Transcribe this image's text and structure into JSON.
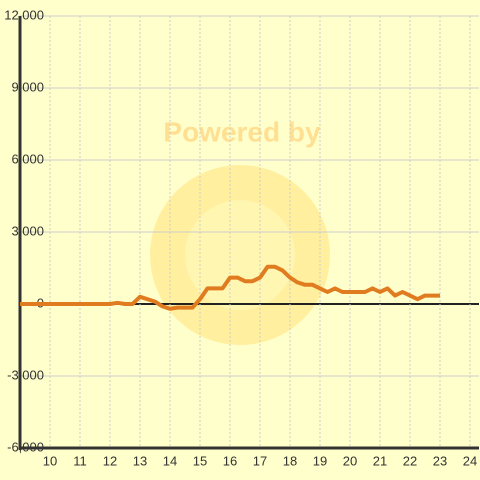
{
  "chart_data": {
    "type": "line",
    "watermark": "Powered by",
    "x": [
      9,
      9.25,
      9.5,
      9.75,
      10,
      10.25,
      10.5,
      10.75,
      11,
      11.25,
      11.5,
      11.75,
      12,
      12.25,
      12.5,
      12.75,
      13,
      13.25,
      13.5,
      13.75,
      14,
      14.25,
      14.5,
      14.75,
      15,
      15.25,
      15.5,
      15.75,
      16,
      16.25,
      16.5,
      16.75,
      17,
      17.25,
      17.5,
      17.75,
      18,
      18.25,
      18.5,
      18.75,
      19,
      19.25,
      19.5,
      19.75,
      20,
      20.25,
      20.5,
      20.75,
      21,
      21.25,
      21.5,
      21.75,
      22,
      22.25,
      22.5,
      22.75,
      23
    ],
    "series": [
      {
        "color": "#e07b20",
        "values": [
          0,
          0,
          0,
          0,
          0,
          0,
          0,
          0,
          0,
          0,
          0,
          0,
          0,
          50,
          0,
          0,
          300,
          200,
          100,
          -100,
          -200,
          -150,
          -150,
          -150,
          200,
          650,
          650,
          650,
          1100,
          1100,
          950,
          950,
          1100,
          1550,
          1550,
          1400,
          1100,
          900,
          800,
          800,
          650,
          500,
          650,
          500,
          500,
          500,
          500,
          650,
          500,
          650,
          350,
          500,
          350,
          200,
          350,
          350,
          350
        ]
      }
    ],
    "xlim": [
      9,
      24.3
    ],
    "xticks": [
      10,
      11,
      12,
      13,
      14,
      15,
      16,
      17,
      18,
      19,
      20,
      21,
      22,
      23,
      24
    ],
    "ylim": [
      -6000,
      12000
    ],
    "yticks": [
      {
        "value": -6000,
        "label": "-6,000"
      },
      {
        "value": -3000,
        "label": "-3,000"
      },
      0,
      {
        "value": 3000,
        "label": "3,000"
      },
      {
        "value": 6000,
        "label": "6,000"
      },
      {
        "value": 9000,
        "label": "9,000"
      },
      {
        "value": 12000,
        "label": "12,000"
      }
    ],
    "grid": true
  }
}
